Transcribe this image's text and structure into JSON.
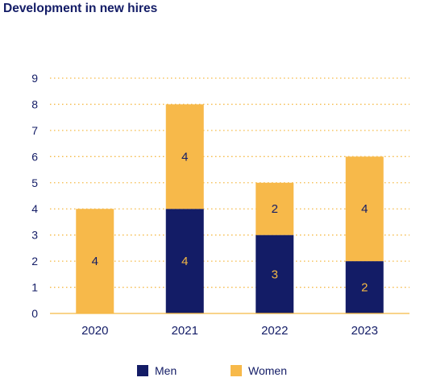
{
  "chart_data": {
    "type": "bar",
    "stacked": true,
    "title": "Development in new hires",
    "xlabel": "",
    "ylabel": "",
    "categories": [
      "2020",
      "2021",
      "2022",
      "2023"
    ],
    "series": [
      {
        "name": "Men",
        "color": "#131c66",
        "label_color": "#f5b944",
        "values": [
          0,
          4,
          3,
          2
        ]
      },
      {
        "name": "Women",
        "color": "#f7b94a",
        "label_color": "#131c66",
        "values": [
          4,
          4,
          2,
          4
        ]
      }
    ],
    "ylim": [
      0,
      9
    ],
    "yticks": [
      0,
      1,
      2,
      3,
      4,
      5,
      6,
      7,
      8,
      9
    ],
    "grid": true,
    "legend_position": "bottom"
  }
}
